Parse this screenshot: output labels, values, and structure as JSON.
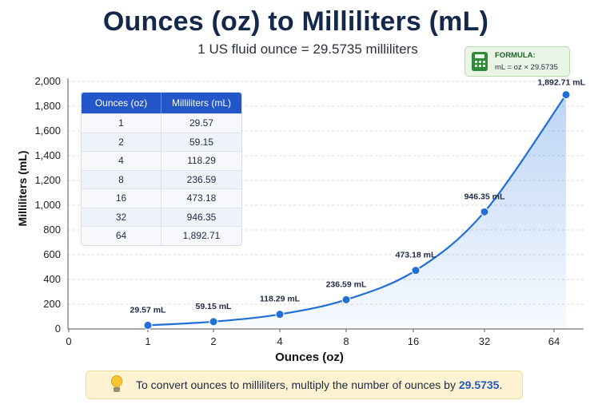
{
  "header": {
    "title": "Ounces (oz) to Milliliters (mL)",
    "subtitle": "1 US fluid ounce = 29.5735 milliliters"
  },
  "formula": {
    "label": "FORMULA:",
    "text": "mL = oz × 29.5735",
    "icon": "calculator-icon"
  },
  "table": {
    "headers": [
      "Ounces (oz)",
      "Milliliters (mL)"
    ],
    "rows": [
      [
        "1",
        "29.57"
      ],
      [
        "2",
        "59.15"
      ],
      [
        "4",
        "118.29"
      ],
      [
        "8",
        "236.59"
      ],
      [
        "16",
        "473.18"
      ],
      [
        "32",
        "946.35"
      ],
      [
        "64",
        "1,892.71"
      ]
    ]
  },
  "note": {
    "icon": "lightbulb-icon",
    "text": "To convert ounces to milliliters, multiply the number of ounces by ",
    "value": "29.5735",
    "suffix": "."
  },
  "colors": {
    "accent": "#2356c9",
    "line": "#1f6fd6",
    "title": "#14284b"
  },
  "chart_data": {
    "type": "area",
    "title": "Ounces (oz) to Milliliters (mL)",
    "subtitle": "1 US fluid ounce = 29.5735 milliliters",
    "xlabel": "Ounces (oz)",
    "ylabel": "Milliliters (mL)",
    "x_ticks": [
      "0",
      "1",
      "2",
      "4",
      "8",
      "16",
      "32",
      "64"
    ],
    "x": [
      1,
      2,
      4,
      8,
      16,
      32,
      64
    ],
    "values": [
      29.57,
      59.15,
      118.29,
      236.59,
      473.18,
      946.35,
      1892.71
    ],
    "data_labels": [
      "29.57 mL",
      "59.15 mL",
      "118.29 mL",
      "236.59 mL",
      "473.18 mL",
      "946.35 mL",
      "1,892.71 mL"
    ],
    "y_ticks": [
      "0",
      "200",
      "400",
      "600",
      "800",
      "1,000",
      "1,200",
      "1,400",
      "1,600",
      "1,800",
      "2,000"
    ],
    "ylim": [
      0,
      2000
    ],
    "grid": true,
    "legend": "none"
  }
}
